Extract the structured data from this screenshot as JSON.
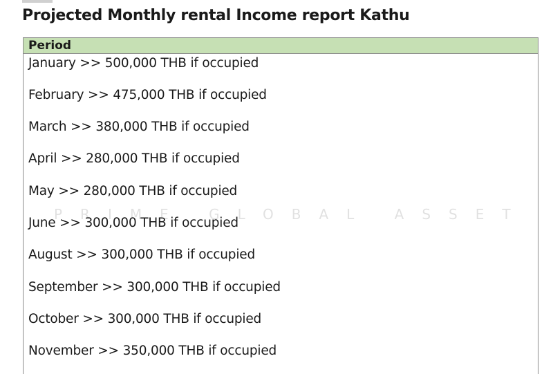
{
  "report": {
    "title": "Projected Monthly rental Income report Kathu",
    "table_header": "Period",
    "rows": [
      "January >> 500,000 THB if occupied",
      "February >> 475,000 THB if occupied",
      "March >> 380,000 THB if occupied",
      "April >> 280,000 THB if occupied",
      "May >> 280,000 THB if occupied",
      "June >> 300,000 THB if occupied",
      "August >> 300,000 THB if occupied",
      "September >> 300,000 THB if occupied",
      "October >> 300,000 THB if occupied",
      "November >> 350,000 THB if occupied"
    ],
    "watermark": "PRIME GLOBAL ASSET"
  },
  "colors": {
    "header_fill": "#c6e0b4",
    "border": "#8a8a8a",
    "text": "#1a1a1a"
  }
}
